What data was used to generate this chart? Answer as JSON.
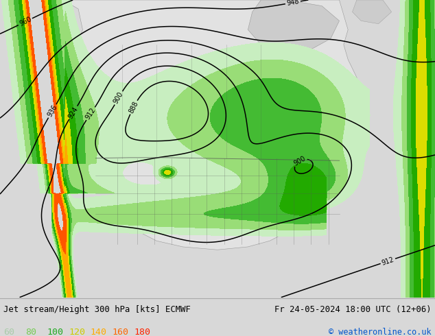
{
  "title_left": "Jet stream/Height 300 hPa [kts] ECMWF",
  "title_right": "Fr 24-05-2024 18:00 UTC (12+06)",
  "copyright": "© weatheronline.co.uk",
  "legend_values": [
    "60",
    "80",
    "100",
    "120",
    "140",
    "160",
    "180"
  ],
  "legend_colors_display": [
    "#aaccaa",
    "#77cc55",
    "#22aa22",
    "#cccc00",
    "#ffaa00",
    "#ff6600",
    "#ff2200"
  ],
  "background_color": "#d8d8d8",
  "map_ocean_color": "#d8d8d8",
  "map_land_color": "#e8e8e8",
  "bottom_bg": "#ffffff",
  "title_color": "#000000",
  "copyright_color": "#0055cc",
  "fig_width": 6.34,
  "fig_height": 4.9,
  "dpi": 100,
  "jet_levels": [
    60,
    80,
    100,
    120,
    140,
    160,
    180,
    220
  ],
  "jet_fill_colors": [
    "#c8eec0",
    "#99dd77",
    "#44bb33",
    "#22aa00",
    "#dddd00",
    "#ffaa00",
    "#ff5500"
  ],
  "contour_color": "#000000"
}
